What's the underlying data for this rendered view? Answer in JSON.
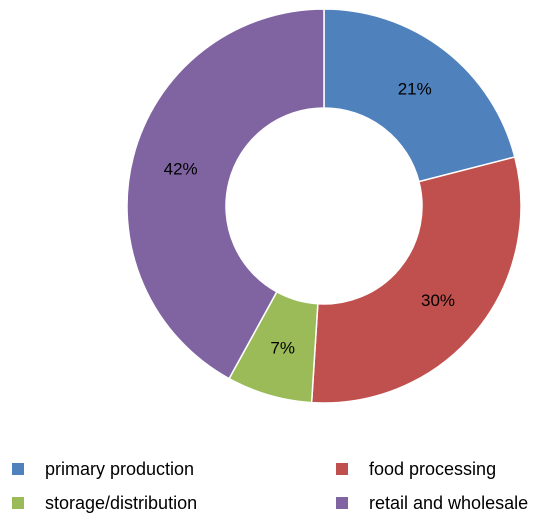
{
  "chart_data": {
    "type": "pie",
    "variant": "donut",
    "title": "",
    "series": [
      {
        "name": "",
        "categories": [
          "primary production",
          "food processing",
          "storage/distribution",
          "retail and wholesale"
        ],
        "values": [
          21,
          30,
          7,
          42
        ],
        "labels": [
          "21%",
          "30%",
          "7%",
          "42%"
        ],
        "colors": [
          "#4F81BD",
          "#C0504D",
          "#9BBB59",
          "#8064A2"
        ]
      }
    ],
    "start_angle": "12 o'clock",
    "direction": "clockwise",
    "legend_position": "bottom",
    "legend_columns": 2,
    "slice_border_color": "#ffffff"
  },
  "legend": {
    "items": [
      {
        "label": "primary production",
        "color": "#4F81BD"
      },
      {
        "label": "food processing",
        "color": "#C0504D"
      },
      {
        "label": "storage/distribution",
        "color": "#9BBB59"
      },
      {
        "label": "retail and wholesale",
        "color": "#8064A2"
      }
    ]
  }
}
